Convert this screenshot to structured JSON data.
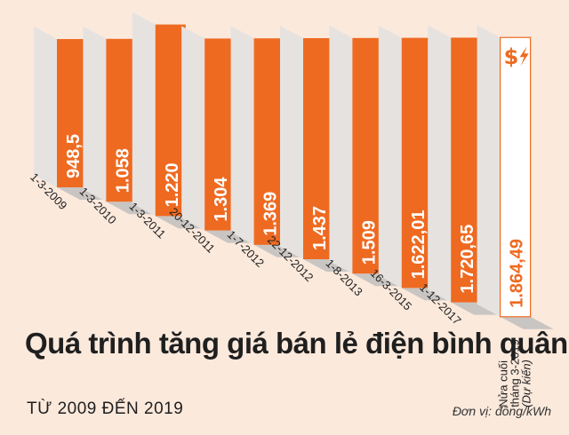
{
  "chart_data": {
    "type": "bar",
    "title": "Quá trình tăng giá bán lẻ điện bình quân",
    "subtitle": "TỪ 2009 ĐẾN 2019",
    "unit": "Đơn vị: đồng/kWh",
    "categories": [
      "1-3-2009",
      "1-3-2010",
      "1-3-2011",
      "20-12-2011",
      "1-7-2012",
      "22-12-2012",
      "1-8-2013",
      "16-3-2015",
      "1-12-2017",
      "Nửa cuối tháng 3-2019 (Dự kiến)"
    ],
    "category_lines": [
      [
        "1-3-2009"
      ],
      [
        "1-3-2010"
      ],
      [
        "1-3-2011"
      ],
      [
        "20-12-2011"
      ],
      [
        "1-7-2012"
      ],
      [
        "22-12-2012"
      ],
      [
        "1-8-2013"
      ],
      [
        "16-3-2015"
      ],
      [
        "1-12-2017"
      ],
      [
        "Nửa cuối",
        "tháng 3-2019",
        "(Dự kiến)"
      ]
    ],
    "values": [
      948.5,
      1058,
      1220,
      1304,
      1369,
      1437,
      1509,
      1622.01,
      1720.65,
      1864.49
    ],
    "value_labels": [
      "948,5",
      "1.058",
      "1.220",
      "1.304",
      "1.369",
      "1.437",
      "1.509",
      "1.622,01",
      "1.720,65",
      "1.864,49"
    ],
    "icons": [
      "dollar-sign-icon",
      "lightning-bolt-icon"
    ],
    "colors": {
      "background": "#fbe9dc",
      "bar_front": "#ee6a21",
      "bar_side": "#e6e2df",
      "bar_base": "#c9c5c2",
      "highlight_bar": "#ffffff",
      "value_text": "#ffffff",
      "highlight_text": "#ee6a21"
    }
  }
}
